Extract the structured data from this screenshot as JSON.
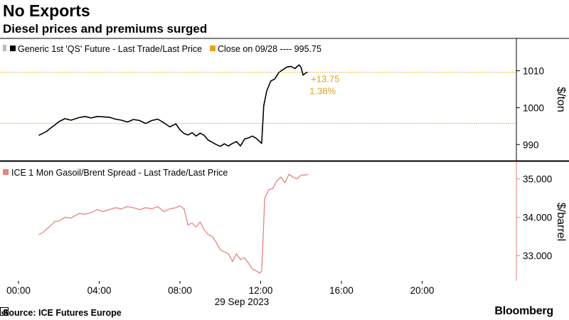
{
  "header": {
    "title": "No Exports",
    "subtitle": "Diesel prices and premiums surged"
  },
  "footer": {
    "source": "Source: ICE Futures Europe",
    "brand": "Bloomberg"
  },
  "colors": {
    "diesel": "#000000",
    "close_line": "#e8a317",
    "spread": "#e8827c",
    "axis": "#000000"
  },
  "chart_data": [
    {
      "type": "line",
      "unit": "$/ton",
      "legend": {
        "series_label": "Generic 1st 'QS' Future - Last Trade/Last Price",
        "close_label": "Close on 09/28 ---- 995.75"
      },
      "ylim": [
        986,
        1018
      ],
      "yticks": [
        990,
        1000,
        1010
      ],
      "ytick_labels": [
        "990",
        "1000",
        "1010"
      ],
      "close_value": 995.75,
      "annotation": {
        "change": "+13.75",
        "change_pct": "1.38%"
      },
      "series": [
        {
          "name": "Generic 1st 'QS' Future - Last Trade/Last Price",
          "x": [
            1.0,
            1.2,
            1.4,
            1.6,
            1.8,
            2.0,
            2.3,
            2.6,
            3.0,
            3.3,
            3.6,
            3.9,
            4.2,
            4.5,
            4.8,
            5.1,
            5.4,
            5.7,
            6.0,
            6.3,
            6.6,
            6.9,
            7.2,
            7.5,
            7.8,
            8.0,
            8.2,
            8.4,
            8.6,
            8.8,
            9.0,
            9.2,
            9.4,
            9.6,
            9.8,
            10.0,
            10.2,
            10.4,
            10.6,
            10.8,
            11.0,
            11.2,
            11.4,
            11.6,
            11.8,
            11.95,
            12.05,
            12.15,
            12.3,
            12.5,
            12.7,
            12.9,
            13.1,
            13.3,
            13.5,
            13.7,
            13.9,
            14.0,
            14.1,
            14.25,
            14.35
          ],
          "values": [
            992.5,
            993.0,
            993.6,
            994.5,
            995.3,
            996.2,
            997.0,
            996.6,
            997.3,
            997.6,
            997.2,
            997.6,
            997.5,
            997.4,
            996.9,
            996.6,
            996.1,
            996.8,
            996.5,
            995.7,
            996.5,
            996.9,
            995.9,
            994.8,
            995.6,
            994.0,
            993.0,
            992.6,
            993.2,
            992.3,
            993.1,
            992.5,
            991.2,
            990.6,
            990.0,
            989.5,
            990.2,
            989.6,
            990.3,
            990.8,
            989.6,
            991.5,
            991.8,
            992.3,
            991.6,
            990.8,
            990.3,
            1000.5,
            1004.5,
            1007.2,
            1007.8,
            1009.5,
            1010.3,
            1011.0,
            1011.2,
            1010.6,
            1011.6,
            1010.9,
            1008.8,
            1009.5,
            1009.6
          ]
        }
      ]
    },
    {
      "type": "line",
      "unit": "$/barrel",
      "legend": {
        "series_label": "ICE 1 Mon Gasoil/Brent Spread - Last Trade/Last Price"
      },
      "ylim": [
        32.4,
        35.4
      ],
      "yticks": [
        33.0,
        34.0,
        35.0
      ],
      "ytick_labels": [
        "33.000",
        "34.000",
        "35.000"
      ],
      "series": [
        {
          "name": "ICE 1 Mon Gasoil/Brent Spread - Last Trade/Last Price",
          "x": [
            1.0,
            1.2,
            1.4,
            1.6,
            1.8,
            2.0,
            2.3,
            2.6,
            3.0,
            3.3,
            3.6,
            3.9,
            4.2,
            4.5,
            4.8,
            5.1,
            5.4,
            5.7,
            6.0,
            6.3,
            6.6,
            6.9,
            7.2,
            7.5,
            7.8,
            8.0,
            8.2,
            8.4,
            8.6,
            8.8,
            9.0,
            9.2,
            9.4,
            9.6,
            9.8,
            10.0,
            10.2,
            10.4,
            10.6,
            10.8,
            11.0,
            11.2,
            11.4,
            11.6,
            11.8,
            11.95,
            12.05,
            12.2,
            12.4,
            12.6,
            12.8,
            13.0,
            13.2,
            13.4,
            13.6,
            13.8,
            14.0,
            14.2,
            14.35
          ],
          "values": [
            33.55,
            33.6,
            33.7,
            33.78,
            33.9,
            33.9,
            34.0,
            33.98,
            34.1,
            34.08,
            34.12,
            34.2,
            34.15,
            34.2,
            34.25,
            34.22,
            34.28,
            34.25,
            34.2,
            34.25,
            34.22,
            34.28,
            34.15,
            34.22,
            34.25,
            34.3,
            34.22,
            33.8,
            33.85,
            33.75,
            33.88,
            33.68,
            33.55,
            33.5,
            33.35,
            33.15,
            33.1,
            33.05,
            32.85,
            33.05,
            32.9,
            32.95,
            32.8,
            32.65,
            32.6,
            32.55,
            32.6,
            34.5,
            34.72,
            34.75,
            34.95,
            35.05,
            34.9,
            35.12,
            35.05,
            35.0,
            35.1,
            35.1,
            35.12
          ]
        }
      ]
    }
  ],
  "x_axis": {
    "range": [
      0,
      24
    ],
    "ticks": [
      0,
      4,
      8,
      12,
      16,
      20
    ],
    "tick_labels": [
      "00:00",
      "04:00",
      "08:00",
      "12:00",
      "16:00",
      "20:00"
    ],
    "date_label": "29 Sep 2023"
  }
}
